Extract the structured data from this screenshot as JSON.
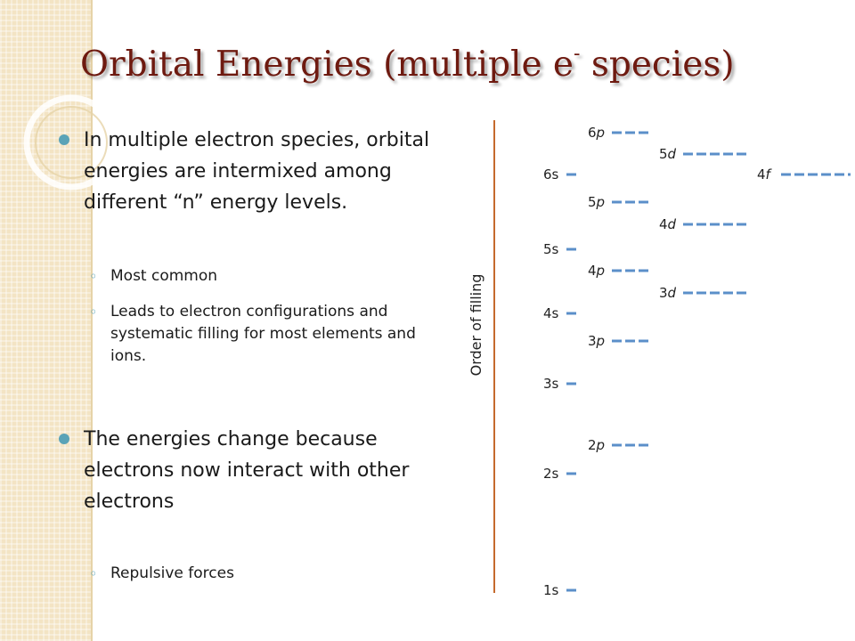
{
  "slide": {
    "title": "Orbital Energies (multiple e",
    "title_superscript": "-",
    "title_end": " species)",
    "bullets": [
      {
        "text": "In multiple electron species, orbital energies are intermixed among different “n” energy levels.",
        "subs": [
          "Most common",
          "Leads to electron configurations and systematic filling for most elements and ions."
        ]
      },
      {
        "text": "The energies change because electrons now interact with other electrons",
        "subs": [
          "Repulsive forces"
        ]
      }
    ]
  },
  "diagram": {
    "y_axis_label": "Order of filling",
    "orbitals": [
      {
        "n": "1",
        "l": "s",
        "slots": 1
      },
      {
        "n": "2",
        "l": "s",
        "slots": 1
      },
      {
        "n": "2",
        "l": "p",
        "slots": 3
      },
      {
        "n": "3",
        "l": "s",
        "slots": 1
      },
      {
        "n": "3",
        "l": "p",
        "slots": 3
      },
      {
        "n": "4",
        "l": "s",
        "slots": 1
      },
      {
        "n": "3",
        "l": "d",
        "slots": 5
      },
      {
        "n": "4",
        "l": "p",
        "slots": 3
      },
      {
        "n": "5",
        "l": "s",
        "slots": 1
      },
      {
        "n": "4",
        "l": "d",
        "slots": 5
      },
      {
        "n": "5",
        "l": "p",
        "slots": 3
      },
      {
        "n": "6",
        "l": "s",
        "slots": 1
      },
      {
        "n": "4",
        "l": "f",
        "slots": 7
      },
      {
        "n": "5",
        "l": "d",
        "slots": 5
      },
      {
        "n": "6",
        "l": "p",
        "slots": 3
      }
    ]
  },
  "colors": {
    "title": "#6e1a10",
    "bullet": "#5aa3b7",
    "orbital_dash": "#5b8fc9",
    "axis_line": "#c56a2d"
  }
}
